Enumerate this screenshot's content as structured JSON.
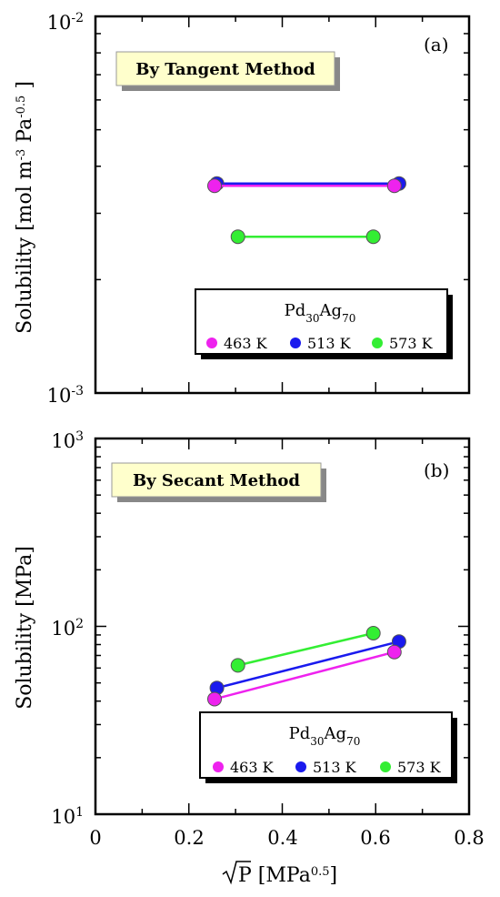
{
  "chart_data": [
    {
      "type": "line",
      "panel_label": "(a)",
      "method_label": "By Tangent Method",
      "ylabel": "Solubility [mol m-3 Pa-0.5 ]",
      "ylabel_parts": {
        "main": "Solubility [mol m",
        "sup1": "-3",
        "mid": " Pa",
        "sup2": "-0.5",
        "end": " ]"
      },
      "yscale": "log",
      "ylim": [
        0.001,
        0.01
      ],
      "ytick_labels": [
        {
          "base": "10",
          "exp": "-3"
        },
        {
          "base": "10",
          "exp": "-2"
        }
      ],
      "xlim": [
        0,
        0.8
      ],
      "legend": {
        "title": "Pd",
        "title_sub1": "30",
        "title_mid": "Ag",
        "title_sub2": "70",
        "placement": "bottom-right"
      },
      "series": [
        {
          "name": "463 K",
          "color": "#ee22ee",
          "x": [
            0.255,
            0.64
          ],
          "y": [
            0.00355,
            0.00355
          ]
        },
        {
          "name": "513 K",
          "color": "#1a1aee",
          "x": [
            0.26,
            0.65
          ],
          "y": [
            0.0036,
            0.0036
          ]
        },
        {
          "name": "573 K",
          "color": "#33ee33",
          "x": [
            0.305,
            0.595
          ],
          "y": [
            0.0026,
            0.0026
          ]
        }
      ]
    },
    {
      "type": "line",
      "panel_label": "(b)",
      "method_label": "By Secant Method",
      "ylabel": "Solubility [MPa]",
      "yscale": "log",
      "ylim": [
        10,
        1000
      ],
      "ytick_labels": [
        {
          "base": "10",
          "exp": "1"
        },
        {
          "base": "10",
          "exp": "2"
        },
        {
          "base": "10",
          "exp": "3"
        }
      ],
      "xlim": [
        0,
        0.8
      ],
      "xticks": [
        "0",
        "0.2",
        "0.4",
        "0.6",
        "0.8"
      ],
      "xlabel": "√P [MPa0.5]",
      "xlabel_parts": {
        "main": "P [MPa",
        "sup": "0.5",
        "end": "]"
      },
      "legend": {
        "title": "Pd",
        "title_sub1": "30",
        "title_mid": "Ag",
        "title_sub2": "70",
        "placement": "bottom-right"
      },
      "series": [
        {
          "name": "463 K",
          "color": "#ee22ee",
          "x": [
            0.255,
            0.64
          ],
          "y": [
            41,
            73
          ]
        },
        {
          "name": "513 K",
          "color": "#1a1aee",
          "x": [
            0.26,
            0.65
          ],
          "y": [
            47,
            83
          ]
        },
        {
          "name": "573 K",
          "color": "#33ee33",
          "x": [
            0.305,
            0.595
          ],
          "y": [
            62,
            92
          ]
        }
      ]
    }
  ]
}
